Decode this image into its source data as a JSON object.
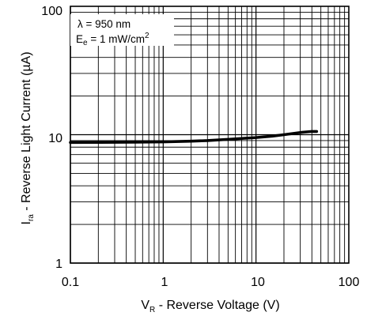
{
  "chart_data": {
    "type": "line",
    "x_scale": "log",
    "y_scale": "log",
    "xlim": [
      0.1,
      100
    ],
    "ylim": [
      1,
      100
    ],
    "grid": true,
    "x_ticks": [
      "0.1",
      "1",
      "10",
      "100"
    ],
    "y_ticks": [
      "1",
      "10",
      "100"
    ],
    "xlabel": {
      "main": "V",
      "sub": "R",
      "rest": " - Reverse Voltage (V)"
    },
    "ylabel": {
      "main": "I",
      "sub": "ra",
      "rest": " - Reverse Light Current (µA)"
    },
    "annotations": {
      "lambda": "λ = 950 nm",
      "irradiance_main": "E",
      "irradiance_sub": "e",
      "irradiance_rest": " = 1 mW/cm",
      "irradiance_sup": "2"
    },
    "series": [
      {
        "x": [
          0.1,
          0.2,
          0.5,
          1,
          2,
          3,
          5,
          7,
          10,
          15,
          20,
          30,
          40,
          45
        ],
        "values": [
          8.7,
          8.72,
          8.75,
          8.8,
          8.9,
          9.0,
          9.2,
          9.35,
          9.5,
          9.75,
          10.0,
          10.4,
          10.6,
          10.6
        ]
      }
    ]
  },
  "colors": {
    "line": "#000000",
    "grid": "#000000",
    "background": "#ffffff"
  }
}
